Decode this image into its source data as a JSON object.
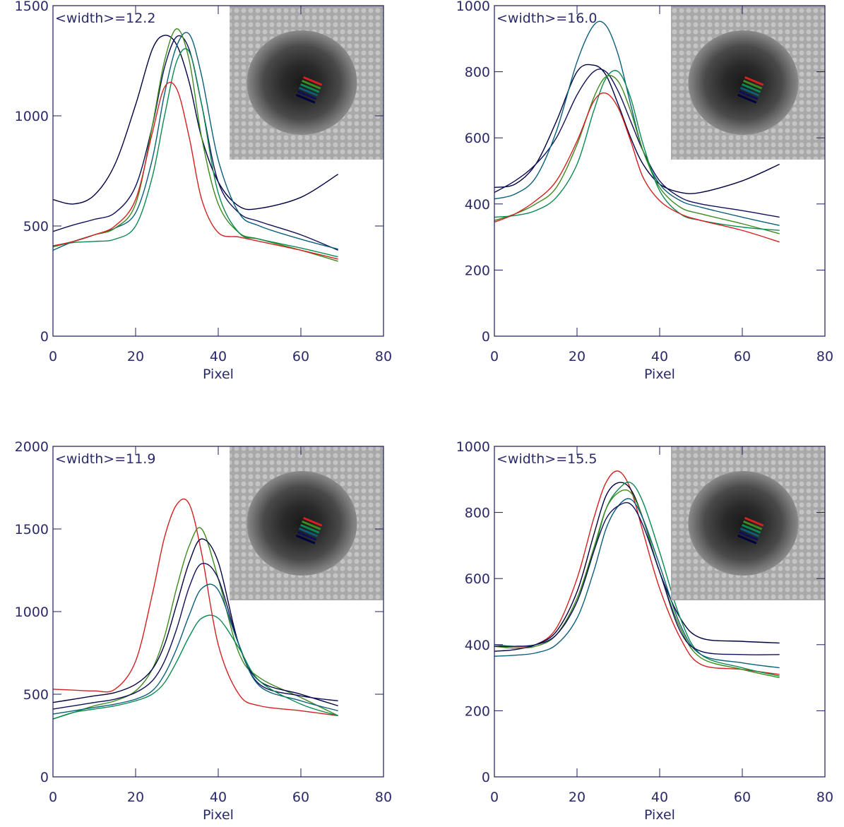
{
  "chart_data": [
    {
      "type": "line",
      "annotation": "<width>=12.2",
      "xlabel": "Pixel",
      "x": [
        0,
        5,
        10,
        15,
        20,
        24,
        27,
        30,
        33,
        36,
        40,
        45,
        50,
        60,
        69
      ],
      "xlim": [
        0,
        80
      ],
      "xticks": [
        0,
        20,
        40,
        60,
        80
      ],
      "ylim": [
        0,
        1500
      ],
      "yticks": [
        0,
        500,
        1000,
        1500
      ],
      "series": [
        {
          "color": "#000040",
          "values": [
            620,
            600,
            640,
            780,
            1050,
            1300,
            1365,
            1320,
            1150,
            900,
            700,
            590,
            580,
            630,
            735
          ]
        },
        {
          "color": "#10105a",
          "values": [
            475,
            505,
            530,
            560,
            680,
            950,
            1220,
            1360,
            1300,
            1050,
            700,
            560,
            520,
            460,
            390
          ]
        },
        {
          "color": "#0b5e7a",
          "values": [
            390,
            430,
            460,
            490,
            560,
            800,
            1100,
            1320,
            1370,
            1180,
            800,
            560,
            500,
            440,
            395
          ]
        },
        {
          "color": "#3d8a1f",
          "values": [
            405,
            430,
            460,
            490,
            600,
            950,
            1250,
            1395,
            1250,
            900,
            600,
            470,
            440,
            390,
            340
          ]
        },
        {
          "color": "#0a8a50",
          "values": [
            410,
            425,
            430,
            440,
            500,
            720,
            1000,
            1250,
            1290,
            1050,
            650,
            470,
            440,
            400,
            360
          ]
        },
        {
          "color": "#d42020",
          "values": [
            410,
            430,
            460,
            500,
            620,
            920,
            1130,
            1120,
            900,
            620,
            470,
            450,
            430,
            390,
            350
          ]
        }
      ]
    },
    {
      "type": "line",
      "annotation": "<width>=16.0",
      "xlabel": "Pixel",
      "x": [
        0,
        5,
        10,
        15,
        20,
        24,
        27,
        30,
        33,
        36,
        40,
        45,
        50,
        60,
        69
      ],
      "xlim": [
        0,
        80
      ],
      "xticks": [
        0,
        20,
        40,
        60,
        80
      ],
      "ylim": [
        0,
        1000
      ],
      "yticks": [
        0,
        200,
        400,
        600,
        800,
        1000
      ],
      "series": [
        {
          "color": "#000040",
          "values": [
            450,
            460,
            520,
            650,
            800,
            820,
            790,
            700,
            600,
            520,
            460,
            435,
            435,
            470,
            520
          ]
        },
        {
          "color": "#10105a",
          "values": [
            435,
            470,
            520,
            600,
            730,
            800,
            800,
            740,
            650,
            560,
            470,
            420,
            400,
            380,
            360
          ]
        },
        {
          "color": "#0b5e7a",
          "values": [
            415,
            430,
            480,
            620,
            830,
            940,
            940,
            850,
            700,
            560,
            460,
            410,
            390,
            360,
            335
          ]
        },
        {
          "color": "#3d8a1f",
          "values": [
            350,
            370,
            400,
            450,
            580,
            720,
            785,
            770,
            680,
            560,
            450,
            390,
            370,
            340,
            310
          ]
        },
        {
          "color": "#0a8a50",
          "values": [
            360,
            365,
            380,
            420,
            520,
            680,
            780,
            800,
            720,
            580,
            440,
            370,
            350,
            330,
            320
          ]
        },
        {
          "color": "#d42020",
          "values": [
            345,
            370,
            410,
            470,
            590,
            710,
            735,
            690,
            590,
            480,
            410,
            370,
            350,
            320,
            285
          ]
        }
      ]
    },
    {
      "type": "line",
      "annotation": "<width>=11.9",
      "xlabel": "Pixel",
      "x": [
        0,
        5,
        10,
        15,
        20,
        24,
        27,
        30,
        33,
        36,
        40,
        45,
        50,
        60,
        69
      ],
      "xlim": [
        0,
        80
      ],
      "xticks": [
        0,
        20,
        40,
        60,
        80
      ],
      "ylim": [
        0,
        2000
      ],
      "yticks": [
        0,
        500,
        1000,
        1500,
        2000
      ],
      "series": [
        {
          "color": "#d42020",
          "values": [
            530,
            525,
            520,
            530,
            700,
            1100,
            1450,
            1650,
            1650,
            1350,
            800,
            500,
            430,
            400,
            370
          ]
        },
        {
          "color": "#3d8a1f",
          "values": [
            350,
            390,
            430,
            460,
            520,
            650,
            850,
            1150,
            1400,
            1500,
            1200,
            750,
            600,
            480,
            370
          ]
        },
        {
          "color": "#000040",
          "values": [
            450,
            470,
            490,
            510,
            560,
            650,
            800,
            1050,
            1300,
            1440,
            1300,
            800,
            580,
            500,
            430
          ]
        },
        {
          "color": "#10105a",
          "values": [
            410,
            430,
            450,
            470,
            510,
            580,
            700,
            900,
            1150,
            1290,
            1200,
            800,
            560,
            490,
            460
          ]
        },
        {
          "color": "#0b5e7a",
          "values": [
            380,
            400,
            420,
            440,
            470,
            520,
            620,
            780,
            980,
            1140,
            1130,
            800,
            550,
            460,
            400
          ]
        },
        {
          "color": "#0a8a50",
          "values": [
            350,
            390,
            410,
            430,
            460,
            500,
            570,
            700,
            850,
            960,
            960,
            780,
            580,
            440,
            370
          ]
        }
      ]
    },
    {
      "type": "line",
      "annotation": "<width>=15.5",
      "xlabel": "Pixel",
      "x": [
        0,
        5,
        10,
        15,
        20,
        24,
        27,
        30,
        33,
        36,
        40,
        45,
        50,
        60,
        69
      ],
      "xlim": [
        0,
        80
      ],
      "xticks": [
        0,
        20,
        40,
        60,
        80
      ],
      "ylim": [
        0,
        1000
      ],
      "yticks": [
        0,
        200,
        400,
        600,
        800,
        1000
      ],
      "series": [
        {
          "color": "#d42020",
          "values": [
            395,
            390,
            400,
            450,
            600,
            780,
            890,
            925,
            870,
            740,
            570,
            420,
            340,
            325,
            310
          ]
        },
        {
          "color": "#000040",
          "values": [
            380,
            385,
            400,
            440,
            560,
            730,
            850,
            890,
            870,
            780,
            620,
            480,
            420,
            410,
            405
          ]
        },
        {
          "color": "#0a8a50",
          "values": [
            400,
            395,
            400,
            430,
            530,
            680,
            810,
            870,
            890,
            830,
            680,
            480,
            370,
            330,
            305
          ]
        },
        {
          "color": "#3d8a1f",
          "values": [
            395,
            390,
            395,
            430,
            540,
            690,
            810,
            860,
            860,
            780,
            620,
            450,
            360,
            325,
            300
          ]
        },
        {
          "color": "#0b5e7a",
          "values": [
            365,
            368,
            375,
            400,
            480,
            620,
            750,
            820,
            840,
            780,
            640,
            460,
            370,
            345,
            330
          ]
        },
        {
          "color": "#10105a",
          "values": [
            395,
            395,
            400,
            430,
            530,
            680,
            780,
            820,
            825,
            760,
            620,
            440,
            380,
            370,
            370
          ]
        }
      ]
    }
  ]
}
